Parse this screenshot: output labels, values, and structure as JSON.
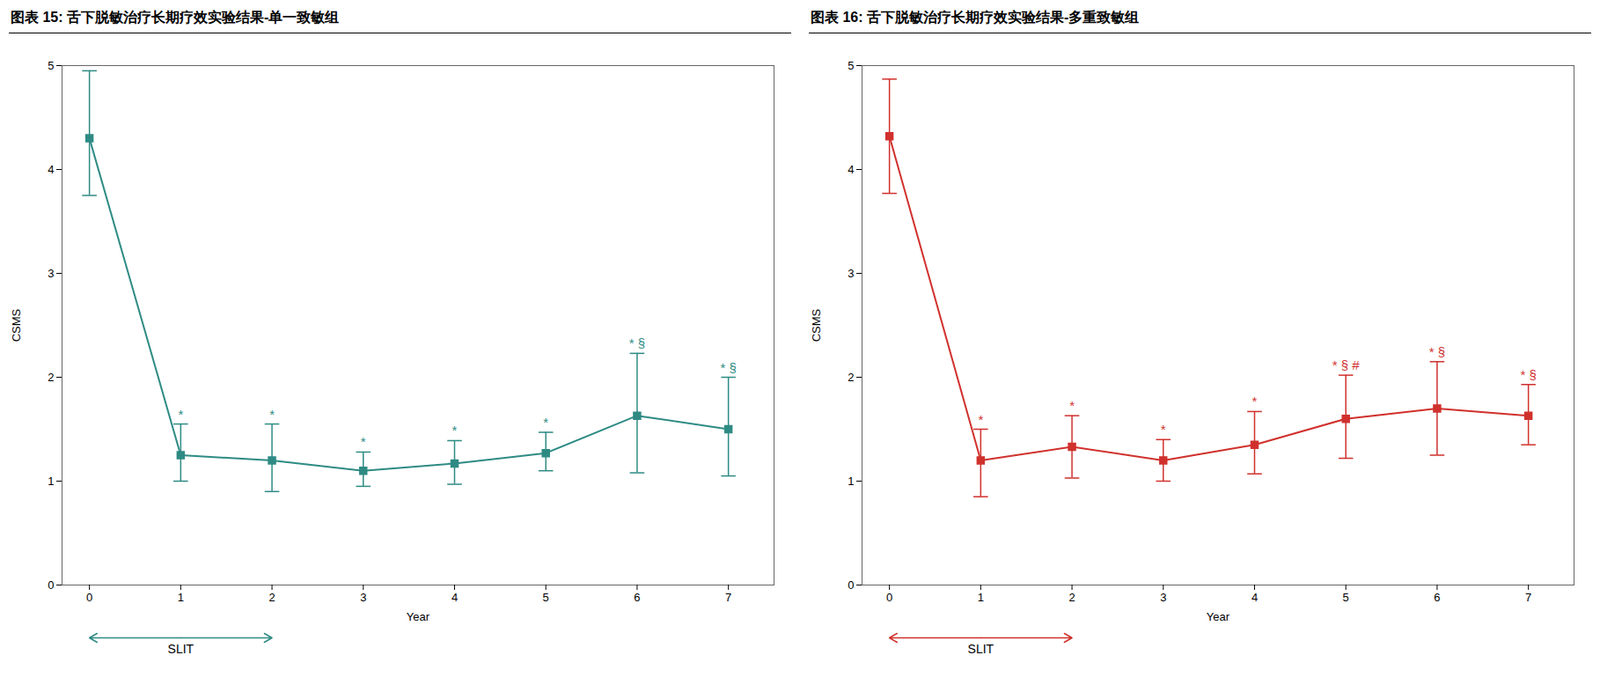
{
  "chart_data": [
    {
      "type": "line",
      "title": "图表 15:  舌下脱敏治疗长期疗效实验结果-单一致敏组",
      "x": [
        0,
        1,
        2,
        3,
        4,
        5,
        6,
        7
      ],
      "values": [
        4.3,
        1.25,
        1.2,
        1.1,
        1.17,
        1.27,
        1.63,
        1.5
      ],
      "error_low": [
        0.55,
        0.25,
        0.3,
        0.15,
        0.2,
        0.17,
        0.55,
        0.45
      ],
      "error_high": [
        0.65,
        0.3,
        0.35,
        0.18,
        0.22,
        0.2,
        0.6,
        0.5
      ],
      "color": "#2e8b84",
      "marker": "square",
      "line_style": "solid",
      "xlim": [
        -0.3,
        7.5
      ],
      "xticks": [
        0,
        1,
        2,
        3,
        4,
        5,
        6,
        7
      ],
      "ylim": [
        0,
        5
      ],
      "yticks": [
        0,
        1,
        2,
        3,
        4,
        5
      ],
      "xlabel": "Year",
      "ylabel": "CSMS",
      "grid": false,
      "annotations": [
        {
          "x": 1,
          "text": "*"
        },
        {
          "x": 2,
          "text": "*"
        },
        {
          "x": 3,
          "text": "*"
        },
        {
          "x": 4,
          "text": "*"
        },
        {
          "x": 5,
          "text": "*"
        },
        {
          "x": 6,
          "text": "* §"
        },
        {
          "x": 7,
          "text": "* §"
        },
        {
          "x_range": [
            0,
            2
          ],
          "text": "SLIT"
        }
      ]
    },
    {
      "type": "line",
      "title": "图表 16:  舌下脱敏治疗长期疗效实验结果-多重致敏组",
      "x": [
        0,
        1,
        2,
        3,
        4,
        5,
        6,
        7
      ],
      "values": [
        4.32,
        1.2,
        1.33,
        1.2,
        1.35,
        1.6,
        1.7,
        1.63
      ],
      "error_low": [
        0.55,
        0.35,
        0.3,
        0.2,
        0.28,
        0.38,
        0.45,
        0.28
      ],
      "error_high": [
        0.55,
        0.3,
        0.3,
        0.2,
        0.32,
        0.42,
        0.45,
        0.3
      ],
      "color": "#d0312d",
      "marker": "square",
      "line_style": "solid",
      "xlim": [
        -0.3,
        7.5
      ],
      "xticks": [
        0,
        1,
        2,
        3,
        4,
        5,
        6,
        7
      ],
      "ylim": [
        0,
        5
      ],
      "yticks": [
        0,
        1,
        2,
        3,
        4,
        5
      ],
      "xlabel": "Year",
      "ylabel": "CSMS",
      "grid": false,
      "annotations": [
        {
          "x": 1,
          "text": "*"
        },
        {
          "x": 2,
          "text": "*"
        },
        {
          "x": 3,
          "text": "*"
        },
        {
          "x": 4,
          "text": "*"
        },
        {
          "x": 5,
          "text": "* § #"
        },
        {
          "x": 6,
          "text": "* §"
        },
        {
          "x": 7,
          "text": "* §"
        },
        {
          "x_range": [
            0,
            2
          ],
          "text": "SLIT"
        }
      ]
    }
  ]
}
